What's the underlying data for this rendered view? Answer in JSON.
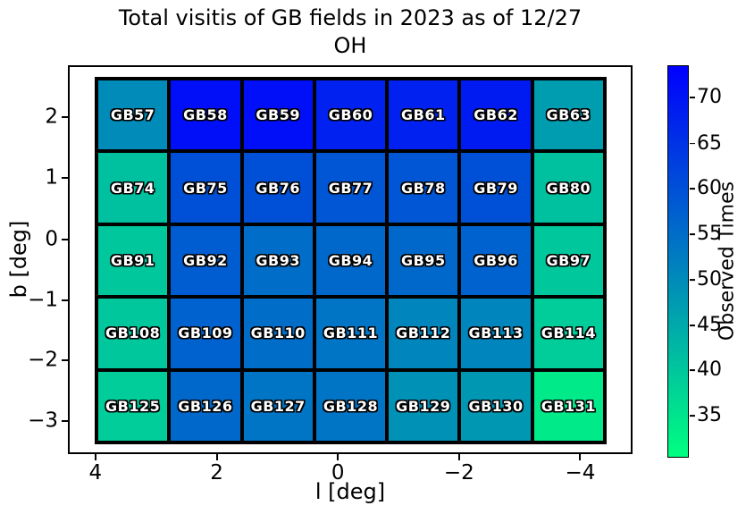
{
  "title": {
    "line1": "Total visitis of GB fields in 2023 as of 12/27",
    "line2": "OH"
  },
  "axes": {
    "xlabel": "l [deg]",
    "ylabel": "b [deg]",
    "x_ticks": [
      {
        "label": "4",
        "pct": 4.6
      },
      {
        "label": "2",
        "pct": 26.2
      },
      {
        "label": "0",
        "pct": 47.8
      },
      {
        "label": "−2",
        "pct": 69.4
      },
      {
        "label": "−4",
        "pct": 91.0
      }
    ],
    "y_ticks": [
      {
        "label": "2",
        "pct": 13.1
      },
      {
        "label": "1",
        "pct": 28.8
      },
      {
        "label": "0",
        "pct": 44.7
      },
      {
        "label": "−1",
        "pct": 60.6
      },
      {
        "label": "−2",
        "pct": 76.0
      },
      {
        "label": "−3",
        "pct": 91.9
      }
    ]
  },
  "colorbar": {
    "label": "Observed Times",
    "top_color": "#0000ff",
    "bottom_color": "#00ff80",
    "vmin": 30.5,
    "vmax": 73.5,
    "ticks": [
      {
        "label": "70",
        "pct": 8.1
      },
      {
        "label": "65",
        "pct": 19.8
      },
      {
        "label": "60",
        "pct": 31.4
      },
      {
        "label": "55",
        "pct": 43.0
      },
      {
        "label": "50",
        "pct": 54.7
      },
      {
        "label": "45",
        "pct": 66.3
      },
      {
        "label": "40",
        "pct": 77.9
      },
      {
        "label": "35",
        "pct": 89.5
      }
    ]
  },
  "chart_data": {
    "type": "heatmap",
    "title": "Total visitis of GB fields in 2023 as of 12/27 OH",
    "xlabel": "l [deg]",
    "ylabel": "b [deg]",
    "x_axis": {
      "tick_labels": [
        "4",
        "2",
        "0",
        "−2",
        "−4"
      ],
      "inverted": true
    },
    "y_axis": {
      "tick_labels": [
        "2",
        "1",
        "0",
        "−1",
        "−2",
        "−3"
      ]
    },
    "colormap": "winter_r",
    "color_range": [
      30.5,
      73.5
    ],
    "colorbar_label": "Observed Times",
    "colorbar_ticks": [
      35,
      40,
      45,
      50,
      55,
      60,
      65,
      70
    ],
    "legend_position": "right-colorbar",
    "grid": "thick-black-cell-borders",
    "rows": [
      {
        "cells": [
          {
            "field": "GB57",
            "value": 50
          },
          {
            "field": "GB58",
            "value": 71
          },
          {
            "field": "GB59",
            "value": 71
          },
          {
            "field": "GB60",
            "value": 68
          },
          {
            "field": "GB61",
            "value": 68
          },
          {
            "field": "GB62",
            "value": 69
          },
          {
            "field": "GB63",
            "value": 47
          }
        ]
      },
      {
        "cells": [
          {
            "field": "GB74",
            "value": 41
          },
          {
            "field": "GB75",
            "value": 60
          },
          {
            "field": "GB76",
            "value": 60
          },
          {
            "field": "GB77",
            "value": 59
          },
          {
            "field": "GB78",
            "value": 59
          },
          {
            "field": "GB79",
            "value": 60
          },
          {
            "field": "GB80",
            "value": 41
          }
        ]
      },
      {
        "cells": [
          {
            "field": "GB91",
            "value": 40
          },
          {
            "field": "GB92",
            "value": 58
          },
          {
            "field": "GB93",
            "value": 55
          },
          {
            "field": "GB94",
            "value": 56
          },
          {
            "field": "GB95",
            "value": 56
          },
          {
            "field": "GB96",
            "value": 57
          },
          {
            "field": "GB97",
            "value": 40
          }
        ]
      },
      {
        "cells": [
          {
            "field": "GB108",
            "value": 40
          },
          {
            "field": "GB109",
            "value": 57
          },
          {
            "field": "GB110",
            "value": 55
          },
          {
            "field": "GB111",
            "value": 54
          },
          {
            "field": "GB112",
            "value": 51
          },
          {
            "field": "GB113",
            "value": 51
          },
          {
            "field": "GB114",
            "value": 39
          }
        ]
      },
      {
        "cells": [
          {
            "field": "GB125",
            "value": 39
          },
          {
            "field": "GB126",
            "value": 56
          },
          {
            "field": "GB127",
            "value": 54
          },
          {
            "field": "GB128",
            "value": 54
          },
          {
            "field": "GB129",
            "value": 49
          },
          {
            "field": "GB130",
            "value": 48
          },
          {
            "field": "GB131",
            "value": 34
          }
        ]
      }
    ]
  }
}
